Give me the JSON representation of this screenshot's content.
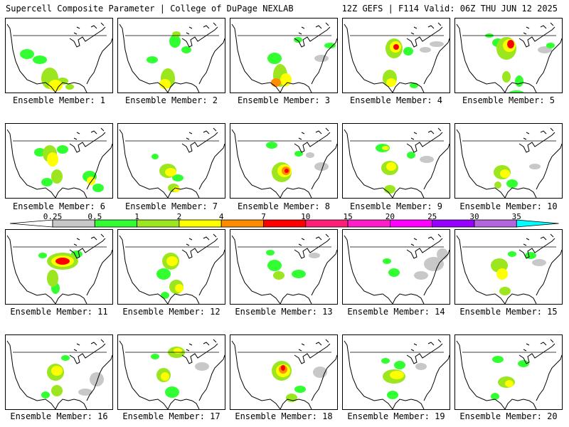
{
  "header": {
    "left": "Supercell Composite Parameter | College of DuPage NEXLAB",
    "right": "12Z GEFS | F114 Valid: 06Z THU JUN 12 2025"
  },
  "members": [
    {
      "label": "Ensemble Member: 1",
      "blobs": [
        [
          30,
          50,
          10,
          7,
          1
        ],
        [
          62,
          84,
          12,
          15,
          2
        ],
        [
          70,
          94,
          10,
          8,
          3
        ],
        [
          80,
          88,
          8,
          5,
          2
        ],
        [
          90,
          96,
          6,
          4,
          2
        ],
        [
          48,
          58,
          10,
          6,
          1
        ]
      ]
    },
    {
      "label": "Ensemble Member: 2",
      "blobs": [
        [
          80,
          32,
          8,
          9,
          1
        ],
        [
          82,
          22,
          6,
          4,
          2
        ],
        [
          70,
          84,
          10,
          14,
          2
        ],
        [
          66,
          92,
          8,
          7,
          3
        ],
        [
          48,
          58,
          8,
          5,
          1
        ],
        [
          96,
          44,
          7,
          5,
          1
        ]
      ]
    },
    {
      "label": "Ensemble Member: 3",
      "blobs": [
        [
          62,
          56,
          10,
          8,
          1
        ],
        [
          70,
          80,
          10,
          16,
          2
        ],
        [
          78,
          86,
          8,
          9,
          3
        ],
        [
          64,
          90,
          7,
          6,
          4
        ],
        [
          95,
          30,
          6,
          4,
          1
        ],
        [
          128,
          56,
          10,
          5,
          0
        ],
        [
          140,
          38,
          8,
          4,
          1
        ]
      ]
    },
    {
      "label": "Ensemble Member: 4",
      "blobs": [
        [
          72,
          42,
          12,
          14,
          2
        ],
        [
          74,
          40,
          8,
          8,
          3
        ],
        [
          75,
          40,
          4,
          4,
          5
        ],
        [
          92,
          46,
          7,
          6,
          1
        ],
        [
          66,
          84,
          10,
          12,
          2
        ],
        [
          68,
          90,
          7,
          6,
          3
        ],
        [
          100,
          94,
          6,
          4,
          1
        ],
        [
          116,
          44,
          8,
          4,
          0
        ],
        [
          132,
          36,
          10,
          4,
          0
        ]
      ]
    },
    {
      "label": "Ensemble Member: 5",
      "blobs": [
        [
          72,
          42,
          14,
          16,
          2
        ],
        [
          76,
          38,
          9,
          9,
          3
        ],
        [
          78,
          36,
          5,
          6,
          5
        ],
        [
          60,
          34,
          8,
          6,
          1
        ],
        [
          48,
          24,
          6,
          3,
          1
        ],
        [
          72,
          82,
          6,
          8,
          2
        ],
        [
          90,
          88,
          6,
          8,
          1
        ],
        [
          86,
          104,
          10,
          3,
          1
        ],
        [
          126,
          44,
          10,
          5,
          0
        ],
        [
          134,
          38,
          6,
          4,
          1
        ]
      ]
    },
    {
      "label": "Ensemble Member: 6",
      "blobs": [
        [
          62,
          42,
          10,
          12,
          2
        ],
        [
          66,
          50,
          8,
          10,
          3
        ],
        [
          48,
          40,
          8,
          6,
          1
        ],
        [
          80,
          36,
          8,
          6,
          1
        ],
        [
          72,
          74,
          8,
          10,
          2
        ],
        [
          118,
          74,
          10,
          8,
          1
        ],
        [
          120,
          80,
          6,
          6,
          3
        ],
        [
          130,
          90,
          8,
          6,
          1
        ],
        [
          58,
          82,
          8,
          6,
          1
        ]
      ]
    },
    {
      "label": "Ensemble Member: 7",
      "blobs": [
        [
          70,
          66,
          12,
          10,
          2
        ],
        [
          74,
          68,
          8,
          6,
          3
        ],
        [
          78,
          90,
          8,
          6,
          2
        ],
        [
          82,
          92,
          5,
          4,
          3
        ],
        [
          84,
          76,
          8,
          5,
          1
        ],
        [
          52,
          46,
          5,
          4,
          1
        ]
      ]
    },
    {
      "label": "Ensemble Member: 8",
      "blobs": [
        [
          72,
          68,
          14,
          14,
          2
        ],
        [
          76,
          66,
          10,
          9,
          3
        ],
        [
          78,
          66,
          6,
          6,
          4
        ],
        [
          79,
          66,
          3,
          3,
          5
        ],
        [
          58,
          30,
          8,
          5,
          1
        ],
        [
          128,
          60,
          10,
          6,
          0
        ],
        [
          112,
          44,
          6,
          4,
          0
        ],
        [
          96,
          42,
          6,
          4,
          1
        ]
      ]
    },
    {
      "label": "Ensemble Member: 9",
      "blobs": [
        [
          66,
          62,
          12,
          10,
          2
        ],
        [
          68,
          60,
          7,
          6,
          3
        ],
        [
          56,
          34,
          10,
          6,
          1
        ],
        [
          60,
          34,
          5,
          3,
          3
        ],
        [
          66,
          92,
          8,
          6,
          2
        ],
        [
          96,
          44,
          6,
          5,
          1
        ],
        [
          118,
          50,
          10,
          5,
          0
        ]
      ]
    },
    {
      "label": "Ensemble Member: 10",
      "blobs": [
        [
          66,
          68,
          12,
          10,
          2
        ],
        [
          70,
          70,
          7,
          6,
          3
        ],
        [
          80,
          84,
          8,
          6,
          1
        ],
        [
          60,
          86,
          5,
          5,
          2
        ],
        [
          112,
          60,
          8,
          4,
          0
        ]
      ]
    },
    {
      "label": "Ensemble Member: 11",
      "blobs": [
        [
          80,
          44,
          22,
          12,
          2
        ],
        [
          80,
          44,
          16,
          8,
          3
        ],
        [
          80,
          44,
          10,
          5,
          5
        ],
        [
          66,
          68,
          8,
          12,
          2
        ],
        [
          70,
          82,
          6,
          8,
          1
        ],
        [
          100,
          34,
          8,
          5,
          1
        ],
        [
          52,
          36,
          6,
          4,
          1
        ]
      ]
    },
    {
      "label": "Ensemble Member: 12",
      "blobs": [
        [
          74,
          44,
          12,
          12,
          2
        ],
        [
          76,
          44,
          8,
          7,
          3
        ],
        [
          64,
          62,
          10,
          8,
          1
        ],
        [
          82,
          80,
          10,
          10,
          2
        ],
        [
          86,
          82,
          6,
          6,
          3
        ],
        [
          66,
          92,
          6,
          5,
          1
        ]
      ]
    },
    {
      "label": "Ensemble Member: 13",
      "blobs": [
        [
          62,
          50,
          10,
          8,
          1
        ],
        [
          68,
          64,
          8,
          6,
          2
        ],
        [
          96,
          62,
          10,
          6,
          1
        ],
        [
          56,
          32,
          6,
          4,
          1
        ],
        [
          118,
          36,
          8,
          4,
          0
        ]
      ]
    },
    {
      "label": "Ensemble Member: 14",
      "blobs": [
        [
          72,
          60,
          8,
          6,
          1
        ],
        [
          62,
          44,
          6,
          4,
          1
        ],
        [
          128,
          48,
          14,
          10,
          0
        ],
        [
          140,
          34,
          8,
          8,
          0
        ],
        [
          110,
          64,
          10,
          6,
          0
        ]
      ]
    },
    {
      "label": "Ensemble Member: 15",
      "blobs": [
        [
          62,
          50,
          12,
          10,
          2
        ],
        [
          66,
          62,
          8,
          8,
          3
        ],
        [
          80,
          34,
          6,
          4,
          1
        ],
        [
          70,
          86,
          8,
          6,
          2
        ],
        [
          106,
          36,
          8,
          5,
          1
        ],
        [
          118,
          46,
          10,
          5,
          0
        ]
      ]
    },
    {
      "label": "Ensemble Member: 16",
      "blobs": [
        [
          70,
          52,
          12,
          12,
          2
        ],
        [
          72,
          50,
          8,
          7,
          3
        ],
        [
          72,
          78,
          8,
          8,
          2
        ],
        [
          56,
          84,
          6,
          5,
          1
        ],
        [
          128,
          62,
          10,
          10,
          0
        ],
        [
          112,
          80,
          10,
          5,
          0
        ],
        [
          84,
          32,
          6,
          4,
          1
        ]
      ]
    },
    {
      "label": "Ensemble Member: 17",
      "blobs": [
        [
          64,
          56,
          10,
          10,
          2
        ],
        [
          66,
          58,
          6,
          6,
          3
        ],
        [
          82,
          24,
          12,
          8,
          2
        ],
        [
          84,
          22,
          6,
          4,
          3
        ],
        [
          76,
          80,
          10,
          8,
          1
        ],
        [
          118,
          44,
          10,
          6,
          0
        ],
        [
          52,
          30,
          6,
          4,
          1
        ]
      ]
    },
    {
      "label": "Ensemble Member: 18",
      "blobs": [
        [
          72,
          50,
          14,
          14,
          2
        ],
        [
          74,
          50,
          10,
          9,
          3
        ],
        [
          74,
          48,
          6,
          6,
          4
        ],
        [
          74,
          46,
          3,
          4,
          5
        ],
        [
          86,
          88,
          8,
          6,
          2
        ],
        [
          98,
          76,
          8,
          5,
          1
        ],
        [
          126,
          52,
          10,
          8,
          0
        ]
      ]
    },
    {
      "label": "Ensemble Member: 19",
      "blobs": [
        [
          72,
          58,
          16,
          10,
          2
        ],
        [
          76,
          56,
          10,
          6,
          3
        ],
        [
          80,
          42,
          8,
          6,
          1
        ],
        [
          60,
          36,
          6,
          4,
          1
        ],
        [
          110,
          44,
          8,
          5,
          0
        ],
        [
          70,
          84,
          8,
          6,
          1
        ]
      ]
    },
    {
      "label": "Ensemble Member: 20",
      "blobs": [
        [
          72,
          66,
          12,
          8,
          2
        ],
        [
          76,
          68,
          6,
          5,
          3
        ],
        [
          60,
          34,
          8,
          5,
          1
        ],
        [
          96,
          40,
          8,
          5,
          1
        ],
        [
          56,
          86,
          6,
          5,
          1
        ]
      ]
    }
  ],
  "colorbar": {
    "labels": [
      "0.25",
      "0.5",
      "1",
      "2",
      "4",
      "7",
      "10",
      "15",
      "20",
      "25",
      "30",
      "35"
    ],
    "colors": [
      "#c8c8c8",
      "#32ff32",
      "#9be61e",
      "#ffff00",
      "#ff8c00",
      "#ff0000",
      "#ff1e78",
      "#ff1ec8",
      "#ff00ff",
      "#9600ff",
      "#b464dc",
      "#00ffff"
    ]
  },
  "level_colors": [
    "#c8c8c8",
    "#32ff32",
    "#9be61e",
    "#ffff00",
    "#ff8c00",
    "#ff0000"
  ]
}
